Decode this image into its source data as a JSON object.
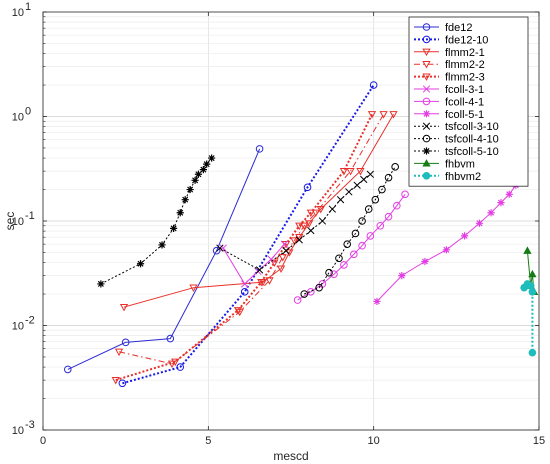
{
  "chart_data": {
    "type": "scatter",
    "xlabel": "mescd",
    "ylabel": "sec",
    "xlim": [
      0,
      15
    ],
    "ylim": [
      0.001,
      10
    ],
    "yscale": "log",
    "grid": true,
    "legend_position": "top-right",
    "xticks": [
      {
        "value": 0,
        "label": "0"
      },
      {
        "value": 5,
        "label": "5"
      },
      {
        "value": 10,
        "label": "10"
      },
      {
        "value": 15,
        "label": "15"
      }
    ],
    "yticks": [
      {
        "value": 0.001,
        "label": "10",
        "exp": "-3"
      },
      {
        "value": 0.01,
        "label": "10",
        "exp": "-2"
      },
      {
        "value": 0.1,
        "label": "10",
        "exp": "-1"
      },
      {
        "value": 1,
        "label": "10",
        "exp": "0"
      },
      {
        "value": 10,
        "label": "10",
        "exp": "1"
      }
    ],
    "series": [
      {
        "name": "fde12",
        "color": "#2b2bd6",
        "dash": "",
        "marker": "circle",
        "filled": false,
        "width": 1,
        "x": [
          0.75,
          2.5,
          3.85,
          5.25,
          6.55
        ],
        "y": [
          0.0038,
          0.0069,
          0.0075,
          0.052,
          0.49
        ]
      },
      {
        "name": "fde12-10",
        "color": "#1a1ae6",
        "dash": "2,2",
        "marker": "circle",
        "filled": false,
        "width": 2,
        "x": [
          2.4,
          4.15,
          6.1,
          8.0,
          10.0
        ],
        "y": [
          0.0028,
          0.004,
          0.021,
          0.21,
          2.0
        ]
      },
      {
        "name": "flmm2-1",
        "color": "#e8302a",
        "dash": "",
        "marker": "triangle-down",
        "filled": false,
        "width": 1,
        "x": [
          2.45,
          4.55,
          6.65,
          7.2,
          7.45,
          7.75,
          8.05,
          8.4,
          9.6,
          10.6
        ],
        "y": [
          0.015,
          0.023,
          0.026,
          0.035,
          0.05,
          0.07,
          0.095,
          0.13,
          0.3,
          1.05
        ]
      },
      {
        "name": "flmm2-2",
        "color": "#e8302a",
        "dash": "6,3,1.5,3",
        "marker": "triangle-down",
        "filled": false,
        "width": 1,
        "x": [
          2.3,
          3.9,
          5.95,
          6.85,
          7.25,
          7.6,
          7.9,
          8.25,
          9.3,
          10.3
        ],
        "y": [
          0.0056,
          0.0043,
          0.0135,
          0.027,
          0.045,
          0.065,
          0.09,
          0.12,
          0.3,
          1.05
        ]
      },
      {
        "name": "flmm2-3",
        "color": "#e8302a",
        "dash": "2,2",
        "marker": "triangle-down",
        "filled": false,
        "width": 2,
        "x": [
          2.2,
          4.0,
          5.9,
          6.6,
          7.0,
          7.35,
          7.75,
          8.1,
          9.1,
          9.95
        ],
        "y": [
          0.003,
          0.0045,
          0.014,
          0.026,
          0.04,
          0.06,
          0.09,
          0.12,
          0.3,
          1.05
        ]
      },
      {
        "name": "fcoll-3-1",
        "color": "#e33ee3",
        "dash": "",
        "marker": "x",
        "filled": false,
        "width": 1,
        "x": [
          5.45,
          6.1,
          6.5,
          6.9,
          7.3
        ],
        "y": [
          0.055,
          0.025,
          0.033,
          0.043,
          0.06
        ]
      },
      {
        "name": "fcoll-4-1",
        "color": "#e33ee3",
        "dash": "",
        "marker": "circle",
        "filled": false,
        "width": 1,
        "x": [
          7.7,
          8.1,
          8.45,
          8.8,
          9.1,
          9.4,
          9.65,
          9.9,
          10.2,
          10.45,
          10.7,
          10.95
        ],
        "y": [
          0.0175,
          0.021,
          0.025,
          0.031,
          0.038,
          0.048,
          0.058,
          0.072,
          0.09,
          0.11,
          0.14,
          0.18
        ]
      },
      {
        "name": "fcoll-5-1",
        "color": "#e33ee3",
        "dash": "",
        "marker": "star",
        "filled": false,
        "width": 1,
        "x": [
          10.1,
          10.85,
          11.55,
          12.2,
          12.75,
          13.2,
          13.55,
          13.85,
          14.1,
          14.3
        ],
        "y": [
          0.017,
          0.03,
          0.041,
          0.053,
          0.072,
          0.095,
          0.12,
          0.15,
          0.18,
          0.22
        ]
      },
      {
        "name": "tsfcoll-3-10",
        "color": "#000000",
        "dash": "2,2",
        "marker": "x",
        "filled": false,
        "width": 1,
        "x": [
          5.35,
          6.55,
          7.35,
          7.75,
          8.1,
          8.45,
          8.75,
          9.0,
          9.25,
          9.5,
          9.7,
          9.9
        ],
        "y": [
          0.055,
          0.034,
          0.052,
          0.066,
          0.081,
          0.1,
          0.13,
          0.16,
          0.19,
          0.22,
          0.25,
          0.28
        ]
      },
      {
        "name": "tsfcoll-4-10",
        "color": "#000000",
        "dash": "2,2",
        "marker": "circle",
        "filled": false,
        "width": 1,
        "x": [
          7.9,
          8.35,
          8.65,
          8.95,
          9.2,
          9.45,
          9.65,
          9.85,
          10.05,
          10.25,
          10.45,
          10.65
        ],
        "y": [
          0.02,
          0.023,
          0.032,
          0.044,
          0.06,
          0.076,
          0.1,
          0.13,
          0.16,
          0.2,
          0.26,
          0.33
        ]
      },
      {
        "name": "tsfcoll-5-10",
        "color": "#000000",
        "dash": "2,2",
        "marker": "star",
        "filled": false,
        "width": 1,
        "x": [
          1.75,
          2.95,
          3.6,
          3.95,
          4.15,
          4.3,
          4.45,
          4.6,
          4.7,
          4.85,
          4.95,
          5.1
        ],
        "y": [
          0.025,
          0.039,
          0.059,
          0.085,
          0.12,
          0.16,
          0.2,
          0.245,
          0.28,
          0.31,
          0.35,
          0.4
        ]
      },
      {
        "name": "fhbvm",
        "color": "#147d14",
        "dash": "",
        "marker": "triangle-up",
        "filled": true,
        "width": 1,
        "x": [
          14.65,
          14.75,
          14.8,
          14.85
        ],
        "y": [
          0.052,
          0.024,
          0.031,
          0.021
        ]
      },
      {
        "name": "fhbvm2",
        "color": "#1fbcbc",
        "dash": "2,2",
        "marker": "circle",
        "filled": true,
        "width": 2,
        "x": [
          14.55,
          14.65,
          14.75,
          14.8,
          14.8
        ],
        "y": [
          0.023,
          0.025,
          0.024,
          0.021,
          0.0055
        ]
      }
    ]
  }
}
